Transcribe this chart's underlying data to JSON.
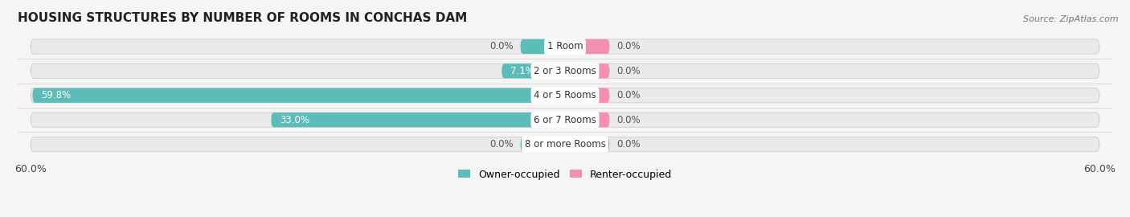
{
  "title": "HOUSING STRUCTURES BY NUMBER OF ROOMS IN CONCHAS DAM",
  "source": "Source: ZipAtlas.com",
  "categories": [
    "1 Room",
    "2 or 3 Rooms",
    "4 or 5 Rooms",
    "6 or 7 Rooms",
    "8 or more Rooms"
  ],
  "owner_values": [
    0.0,
    7.1,
    59.8,
    33.0,
    0.0
  ],
  "renter_values": [
    0.0,
    0.0,
    0.0,
    0.0,
    0.0
  ],
  "owner_color": "#5bbcb8",
  "renter_color": "#f48fb1",
  "bar_bg_color": "#eaeaea",
  "bar_outline_color": "#cccccc",
  "x_min": -60.0,
  "x_max": 60.0,
  "x_tick_labels": [
    "60.0%",
    "60.0%"
  ],
  "title_fontsize": 11,
  "label_fontsize": 8.5,
  "cat_label_fontsize": 8.5,
  "tick_fontsize": 9,
  "legend_fontsize": 9,
  "source_fontsize": 8,
  "fig_bg_color": "#f5f5f5",
  "renter_min_display": 5.0,
  "owner_min_display": 5.0
}
